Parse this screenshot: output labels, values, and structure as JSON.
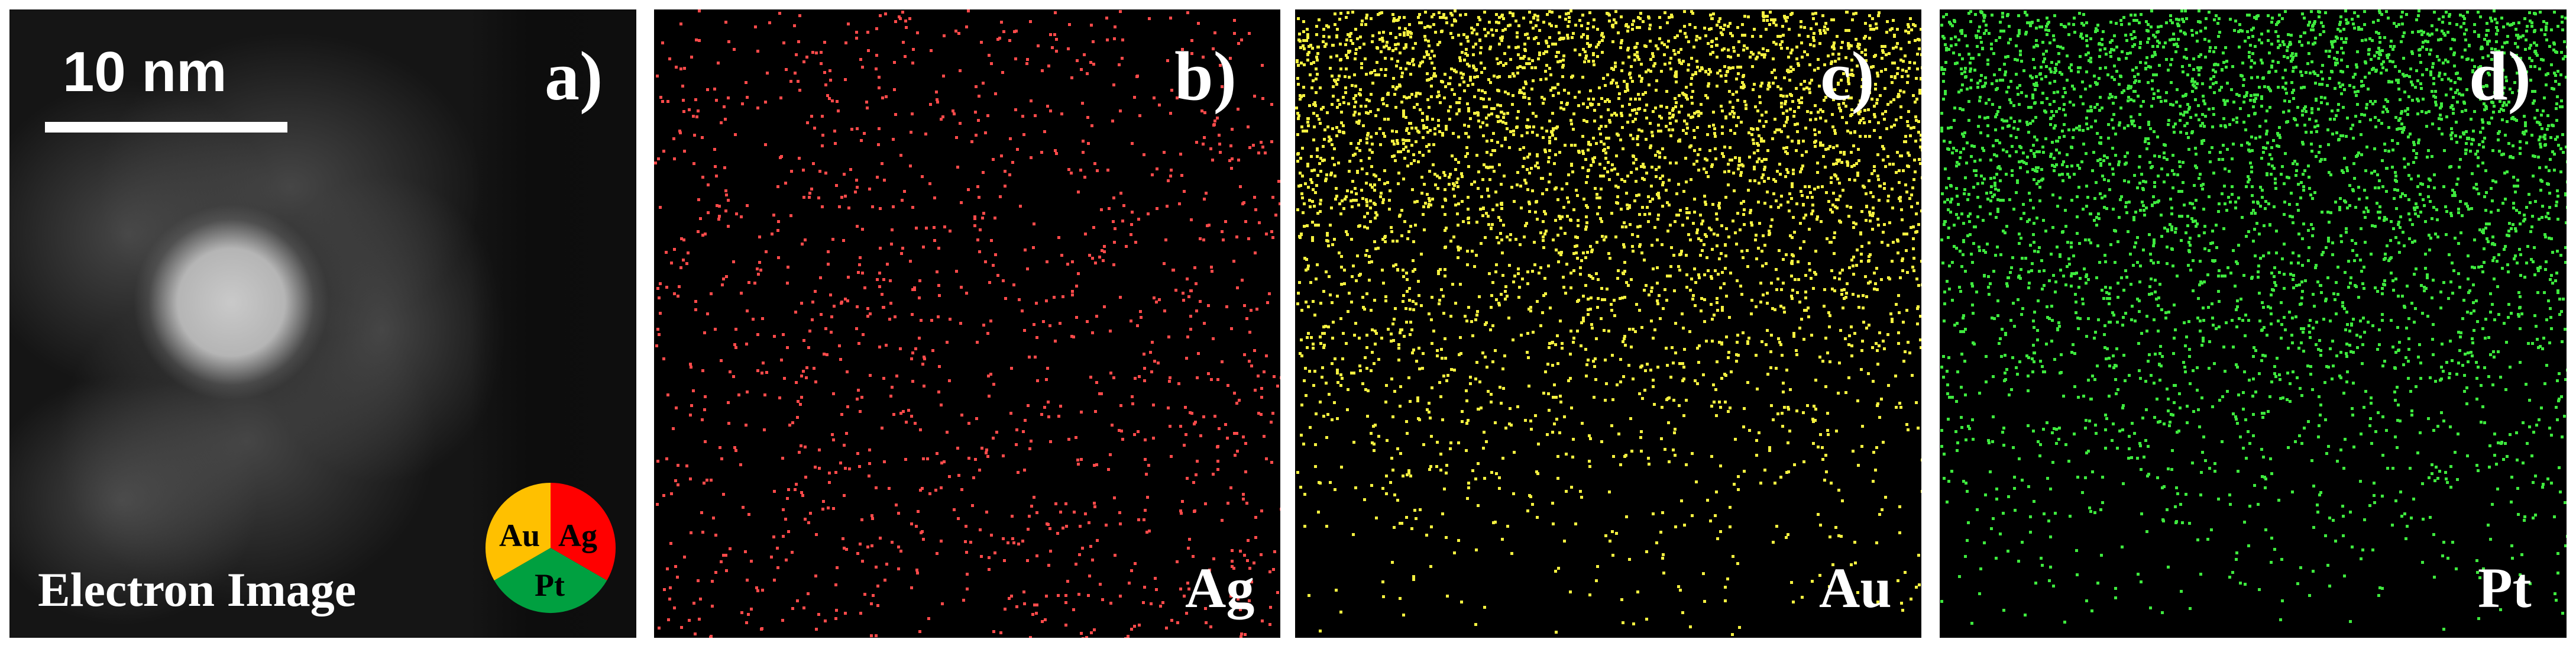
{
  "panels": {
    "a": {
      "tag": "a)",
      "scale_bar": "10 nm",
      "caption": "Electron Image",
      "legend": [
        {
          "label": "Au",
          "color": "#ffc000"
        },
        {
          "label": "Ag",
          "color": "#ff0000"
        },
        {
          "label": "Pt",
          "color": "#00a040"
        }
      ]
    },
    "b": {
      "tag": "b)",
      "element": "Ag",
      "color": "#ff4a4a"
    },
    "c": {
      "tag": "c)",
      "element": "Au",
      "color": "#f4f040"
    },
    "d": {
      "tag": "d)",
      "element": "Pt",
      "color": "#3ee83e"
    }
  }
}
